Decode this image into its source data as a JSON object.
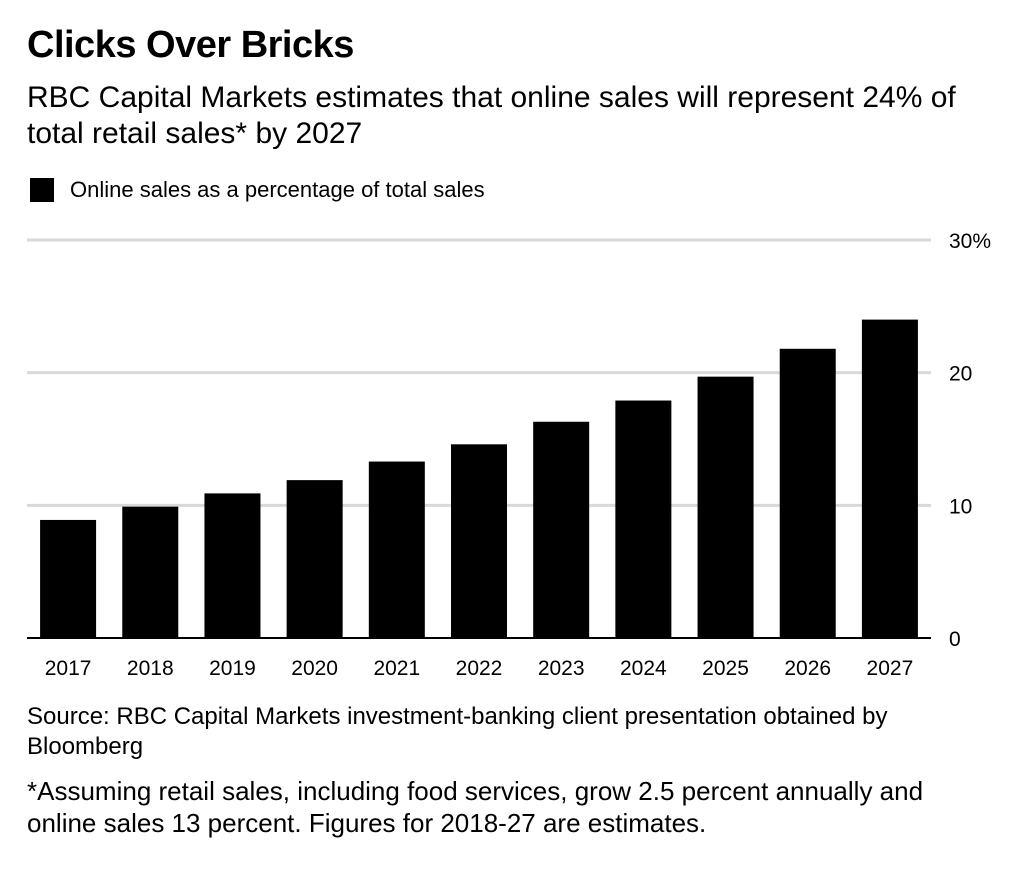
{
  "header": {
    "title": "Clicks Over Bricks",
    "subtitle": "RBC Capital Markets estimates that online sales will represent 24% of total retail sales* by 2027"
  },
  "legend": {
    "label": "Online sales as a percentage of total sales",
    "color": "#000000"
  },
  "chart_data": {
    "type": "bar",
    "categories": [
      "2017",
      "2018",
      "2019",
      "2020",
      "2021",
      "2022",
      "2023",
      "2024",
      "2025",
      "2026",
      "2027"
    ],
    "series": [
      {
        "name": "Online sales as a percentage of total sales",
        "values": [
          8.9,
          9.9,
          10.9,
          11.9,
          13.3,
          14.6,
          16.3,
          17.9,
          19.7,
          21.8,
          24.0
        ],
        "color": "#000000"
      }
    ],
    "ylim": [
      0,
      30
    ],
    "yticks": [
      0,
      10,
      20,
      30
    ],
    "ytick_labels": [
      "0",
      "10",
      "20",
      "30%"
    ],
    "y_axis_position": "right",
    "grid": true,
    "grid_color": "#d9d9d9"
  },
  "footer": {
    "source": "Source: RBC Capital Markets investment-banking client presentation obtained by Bloomberg",
    "note": "*Assuming retail sales, including food services, grow 2.5 percent annually and online sales 13 percent. Figures for 2018-27 are estimates."
  }
}
